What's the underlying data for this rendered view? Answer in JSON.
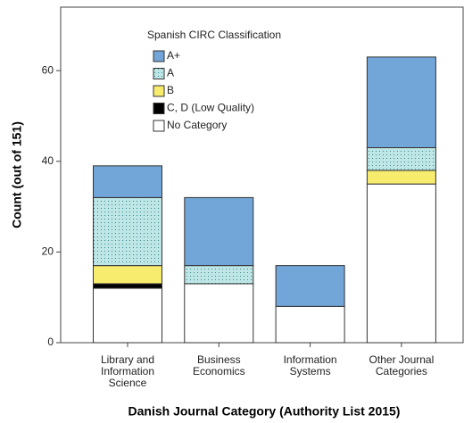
{
  "chart_data": {
    "type": "stacked_bar",
    "x_label": "Danish Journal Category (Authority List 2015)",
    "y_label": "Count (out of 151)",
    "legend_title": "Spanish CIRC Classification",
    "categories": [
      "Library and\nInformation\nScience",
      "Business\nEconomics",
      "Information\nSystems",
      "Other Journal\nCategories"
    ],
    "series": [
      {
        "name": "No Category",
        "color": "#ffffff",
        "values": [
          12,
          13,
          8,
          35
        ]
      },
      {
        "name": "C, D (Low Quality)",
        "color": "#000000",
        "values": [
          1,
          0,
          0,
          0
        ]
      },
      {
        "name": "B",
        "color": "#f7ec6e",
        "values": [
          4,
          0,
          0,
          3
        ]
      },
      {
        "name": "A",
        "color": "#bfe6e6",
        "pattern": "dots",
        "values": [
          15,
          4,
          0,
          5
        ]
      },
      {
        "name": "A+",
        "color": "#72a5d8",
        "values": [
          7,
          15,
          9,
          20
        ]
      }
    ],
    "ylim": [
      0,
      74
    ],
    "yticks": [
      0,
      20,
      40,
      60
    ],
    "grid": false
  }
}
